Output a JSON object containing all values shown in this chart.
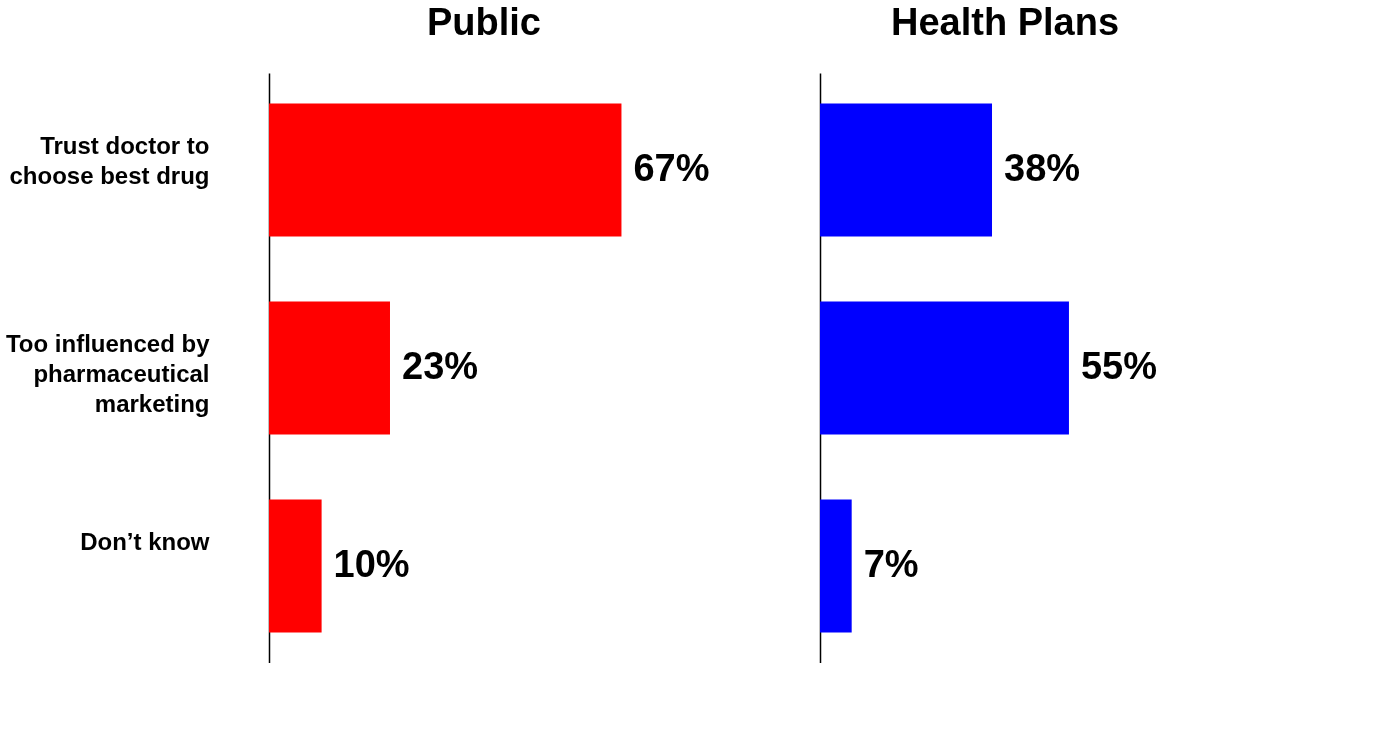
{
  "chart_data": [
    {
      "type": "bar",
      "orientation": "horizontal",
      "title": "Public",
      "categories": [
        "Trust doctor to choose best drug",
        "Too influenced by pharmaceutical marketing",
        "Don’t know"
      ],
      "values": [
        67,
        23,
        10
      ],
      "color": "#ff0000",
      "value_labels": [
        "67%",
        "23%",
        "10%"
      ],
      "tick_labels": "y"
    },
    {
      "type": "bar",
      "orientation": "horizontal",
      "title": "Health Plans",
      "categories": [
        null,
        null,
        null
      ],
      "values": [
        38,
        55,
        7
      ],
      "color": "#0000ff",
      "value_labels": [
        "38%",
        "55%",
        "7%"
      ],
      "tick_labels": false
    }
  ]
}
